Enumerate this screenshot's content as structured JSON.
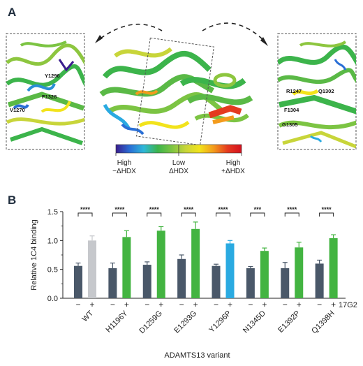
{
  "panel_a": {
    "letter": "A",
    "left_zoom_labels": [
      "Y1296",
      "F1328",
      "V1270"
    ],
    "right_zoom_labels": [
      "R1247",
      "Q1302",
      "F1304",
      "G1305"
    ],
    "colorbar": {
      "gradient_colors": [
        "#3a1d8e",
        "#2a6fd6",
        "#2fb8d8",
        "#3cb44b",
        "#7cc443",
        "#c8d53a",
        "#f2e31c",
        "#f39b1c",
        "#e53a1f",
        "#d4101f"
      ],
      "label_low_left": "High\n−ΔHDX",
      "label_mid": "Low\nΔHDX",
      "label_high_right": "High\n+ΔHDX"
    }
  },
  "panel_b": {
    "letter": "B",
    "treatment_label": "17G2",
    "minus_sign": "−",
    "plus_sign": "+"
  },
  "chart_data": {
    "type": "bar",
    "xlabel": "ADAMTS13 variant",
    "ylabel": "Relative 1C4 binding",
    "ylim": [
      0,
      1.5
    ],
    "yticks": [
      "0.0",
      "0.5",
      "1.0",
      "1.5"
    ],
    "categories": [
      "WT",
      "H1196Y",
      "D1259G",
      "E1293G",
      "Y1296P",
      "N1345D",
      "E1392P",
      "Q1398H"
    ],
    "series": [
      {
        "name": "−",
        "values": [
          0.56,
          0.52,
          0.58,
          0.68,
          0.56,
          0.52,
          0.52,
          0.6
        ],
        "errors": [
          0.05,
          0.09,
          0.05,
          0.07,
          0.03,
          0.03,
          0.1,
          0.06
        ]
      },
      {
        "name": "+",
        "values": [
          1.0,
          1.06,
          1.17,
          1.2,
          0.95,
          0.82,
          0.88,
          1.04
        ],
        "errors": [
          0.08,
          0.11,
          0.07,
          0.12,
          0.05,
          0.05,
          0.09,
          0.06
        ]
      }
    ],
    "significance": [
      "****",
      "****",
      "****",
      "****",
      "****",
      "***",
      "****",
      "****"
    ],
    "colors": {
      "minus": "#4a5869",
      "plus_default": "#43b441",
      "plus_wt": "#c6c8cc",
      "plus_y1296p": "#2aaae1"
    }
  }
}
